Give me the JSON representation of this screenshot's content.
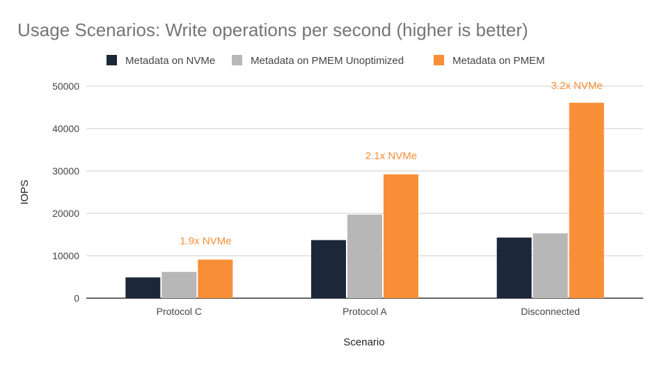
{
  "colors": {
    "nvme": "#1c2739",
    "pmem_unopt": "#b7b7b7",
    "pmem": "#f88e36",
    "annotation": "#f88e36"
  },
  "chart_data": {
    "type": "bar",
    "title": "Usage Scenarios: Write operations per second (higher is better)",
    "xlabel": "Scenario",
    "ylabel": "IOPS",
    "ylim": [
      0,
      50000
    ],
    "yticks": [
      0,
      10000,
      20000,
      30000,
      40000,
      50000
    ],
    "grid": true,
    "legend_position": "top",
    "categories": [
      "Protocol C",
      "Protocol A",
      "Disconnected"
    ],
    "series": [
      {
        "name": "Metadata on NVMe",
        "values": [
          4900,
          13700,
          14300
        ]
      },
      {
        "name": "Metadata on PMEM Unoptimized",
        "values": [
          6200,
          19700,
          15300
        ]
      },
      {
        "name": "Metadata on PMEM",
        "values": [
          9100,
          29200,
          46100
        ]
      }
    ],
    "annotations": [
      "1.9x NVMe",
      "2.1x NVMe",
      "3.2x NVMe"
    ]
  }
}
